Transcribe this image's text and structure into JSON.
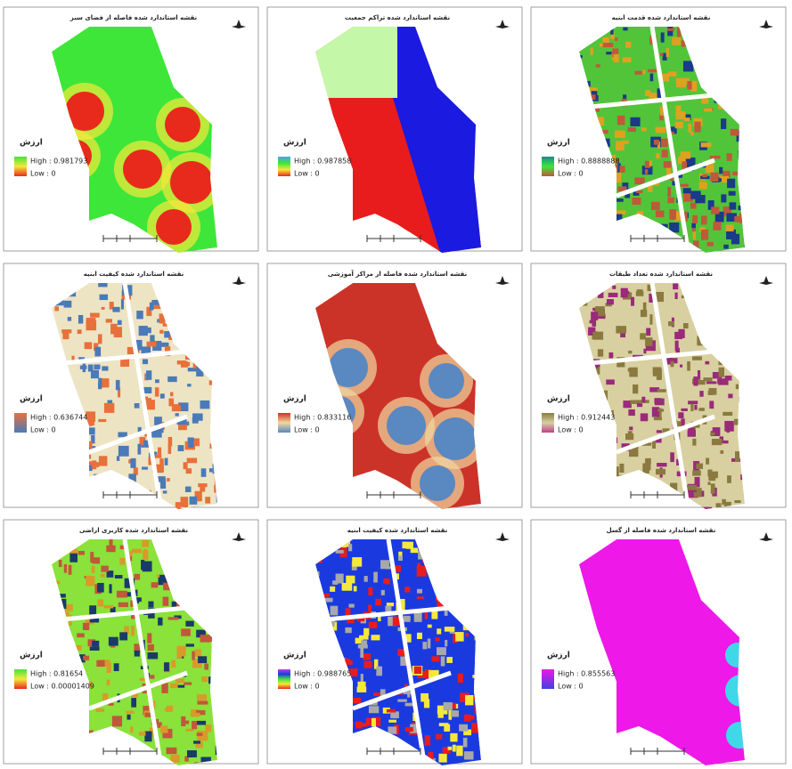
{
  "panels": [
    {
      "title": "نقشه استاندارد شده فاصله از فضای سبز",
      "legend_title": "ارزش",
      "high": "High : 0.981793",
      "low": "Low : 0",
      "colors": [
        "#3ee63a",
        "#f5e83a",
        "#e82a1c"
      ],
      "ramp": [
        "#3ee63a",
        "#f5e83a",
        "#e82a1c"
      ]
    },
    {
      "title": "نقشه استاندارد شده تراکم جمعیت",
      "legend_title": "ارزش",
      "high": "High : 0.987858",
      "low": "Low : 0",
      "colors": [
        "#e81c1c",
        "#1a1ae0",
        "#c4f7a8"
      ],
      "ramp": [
        "#4aa0f0",
        "#3ee63a",
        "#f5e83a",
        "#e82a1c"
      ]
    },
    {
      "title": "نقشه استاندارد شده قدمت ابنیه",
      "legend_title": "ارزش",
      "high": "High : 0.8888888",
      "low": "Low : 0",
      "colors": [
        "#52c43a",
        "#e0a020",
        "#c0583a",
        "#1a3a8a"
      ],
      "ramp": [
        "#1a8a8a",
        "#3ee63a",
        "#c0583a"
      ]
    },
    {
      "title": "نقشه استاندارد شده کیفیت ابنیه",
      "legend_title": "ارزش",
      "high": "High : 0.636744",
      "low": "Low : 0",
      "colors": [
        "#ede4c4",
        "#4a7ab8",
        "#e8703a"
      ],
      "ramp": [
        "#e8703a",
        "#4a7ab8"
      ]
    },
    {
      "title": "نقشه استاندارد شده فاصله از مراکز آموزشی",
      "legend_title": "ارزش",
      "high": "High : 0.833116",
      "low": "Low : 0",
      "colors": [
        "#cc3328",
        "#f0d8a0",
        "#5a88c0"
      ],
      "ramp": [
        "#cc3328",
        "#f0d8a0",
        "#5a88c0"
      ]
    },
    {
      "title": "نقشه استاندارد شده تعداد طبقات",
      "legend_title": "ارزش",
      "high": "High : 0.912443",
      "low": "Low : 0",
      "colors": [
        "#d8d0a0",
        "#9a2a7a",
        "#8a7a40"
      ],
      "ramp": [
        "#8a7a40",
        "#d8d0a0",
        "#c0408a"
      ]
    },
    {
      "title": "نقشه استاندارد شده کاربری اراضی",
      "legend_title": "ارزش",
      "high": "High : 0.81654",
      "low": "Low : 0.00001409",
      "colors": [
        "#8ae23a",
        "#1a3a6a",
        "#d89a2a",
        "#c0583a"
      ],
      "ramp": [
        "#3ee63a",
        "#f5e83a",
        "#e82a1c"
      ]
    },
    {
      "title": "نقشه استاندارد شده کیفیت ابنیه",
      "legend_title": "ارزش",
      "high": "High : 0.988765",
      "low": "Low : 0",
      "colors": [
        "#1a3ae0",
        "#e81c1c",
        "#a8a8a8",
        "#f5e83a"
      ],
      "ramp": [
        "#c040e0",
        "#1a3ae0",
        "#3ee63a",
        "#f5e83a",
        "#e82a1c"
      ]
    },
    {
      "title": "نقشه استاندارد شده فاصله از گسل",
      "legend_title": "ارزش",
      "high": "High : 0.855563",
      "low": "Low : 0",
      "colors": [
        "#ee18e8",
        "#40d8e8"
      ],
      "ramp": [
        "#ee18e8",
        "#4040e0"
      ]
    }
  ]
}
